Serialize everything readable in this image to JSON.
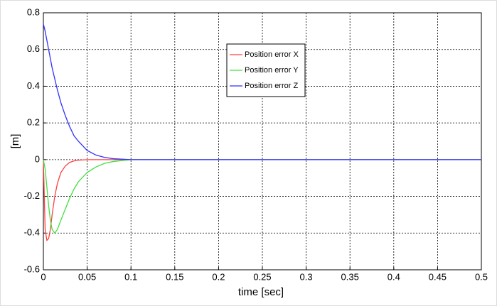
{
  "chart_data": {
    "type": "line",
    "xlabel": "time [sec]",
    "ylabel": "[m]",
    "x": [
      0,
      0.002,
      0.004,
      0.006,
      0.008,
      0.01,
      0.013,
      0.016,
      0.02,
      0.025,
      0.03,
      0.035,
      0.04,
      0.05,
      0.06,
      0.07,
      0.08,
      0.1,
      0.15,
      0.2,
      0.3,
      0.4,
      0.5
    ],
    "series": [
      {
        "name": "Position error X",
        "color": "#ff4040",
        "values": [
          0,
          -0.38,
          -0.44,
          -0.43,
          -0.38,
          -0.3,
          -0.2,
          -0.13,
          -0.07,
          -0.035,
          -0.015,
          -0.007,
          -0.003,
          0,
          0,
          0,
          0,
          0,
          0,
          0,
          0,
          0,
          0
        ]
      },
      {
        "name": "Position error Y",
        "color": "#40e040",
        "values": [
          0,
          -0.05,
          -0.15,
          -0.25,
          -0.33,
          -0.38,
          -0.4,
          -0.38,
          -0.33,
          -0.27,
          -0.21,
          -0.16,
          -0.12,
          -0.07,
          -0.04,
          -0.02,
          -0.01,
          0,
          0,
          0,
          0,
          0,
          0
        ]
      },
      {
        "name": "Position error Z",
        "color": "#3030ff",
        "values": [
          0.74,
          0.7,
          0.65,
          0.6,
          0.55,
          0.5,
          0.44,
          0.38,
          0.31,
          0.24,
          0.18,
          0.13,
          0.1,
          0.05,
          0.025,
          0.012,
          0.005,
          0,
          0,
          0,
          0,
          0,
          0
        ]
      }
    ],
    "xlim": [
      0,
      0.5
    ],
    "xticks": [
      0,
      0.05,
      0.1,
      0.15,
      0.2,
      0.25,
      0.3,
      0.35,
      0.4,
      0.45,
      0.5
    ],
    "ylim": [
      -0.6,
      0.8
    ],
    "yticks": [
      -0.6,
      -0.4,
      -0.2,
      0,
      0.2,
      0.4,
      0.6,
      0.8
    ],
    "grid": true,
    "legend": "upper center"
  }
}
